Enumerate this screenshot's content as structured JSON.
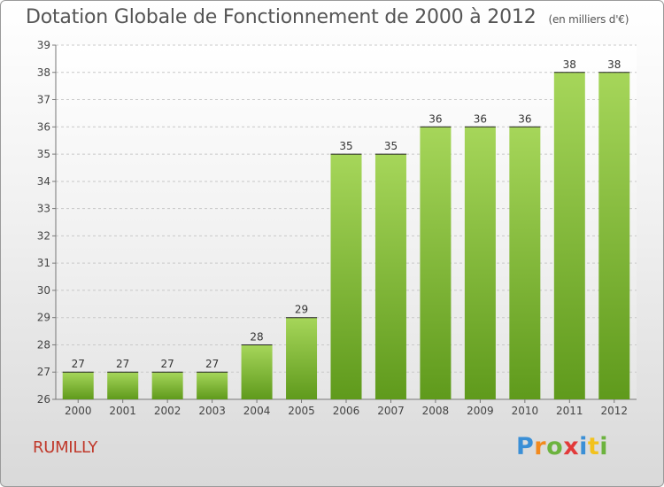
{
  "title": "Dotation Globale de Fonctionnement de 2000 à 2012",
  "subtitle": "(en milliers d'€)",
  "city": "RUMILLY",
  "logo": {
    "letters": [
      "P",
      "r",
      "o",
      "x",
      "i",
      "t",
      "i"
    ],
    "colors": [
      "#3a8fd6",
      "#f28a1e",
      "#6cb33e",
      "#e23a3a",
      "#3a8fd6",
      "#f2c21e",
      "#6cb33e"
    ]
  },
  "chart_data": {
    "type": "bar",
    "title": "Dotation Globale de Fonctionnement de 2000 à 2012",
    "subtitle": "(en milliers d'€)",
    "categories": [
      "2000",
      "2001",
      "2002",
      "2003",
      "2004",
      "2005",
      "2006",
      "2007",
      "2008",
      "2009",
      "2010",
      "2011",
      "2012"
    ],
    "values": [
      27,
      27,
      27,
      27,
      28,
      29,
      35,
      35,
      36,
      36,
      36,
      38,
      38
    ],
    "ylim": [
      26,
      39
    ],
    "yticks": [
      26,
      27,
      28,
      29,
      30,
      31,
      32,
      33,
      34,
      35,
      36,
      37,
      38,
      39
    ],
    "grid": true,
    "bar_color_top": "#a6d65a",
    "bar_color_bottom": "#5f9a1c"
  }
}
